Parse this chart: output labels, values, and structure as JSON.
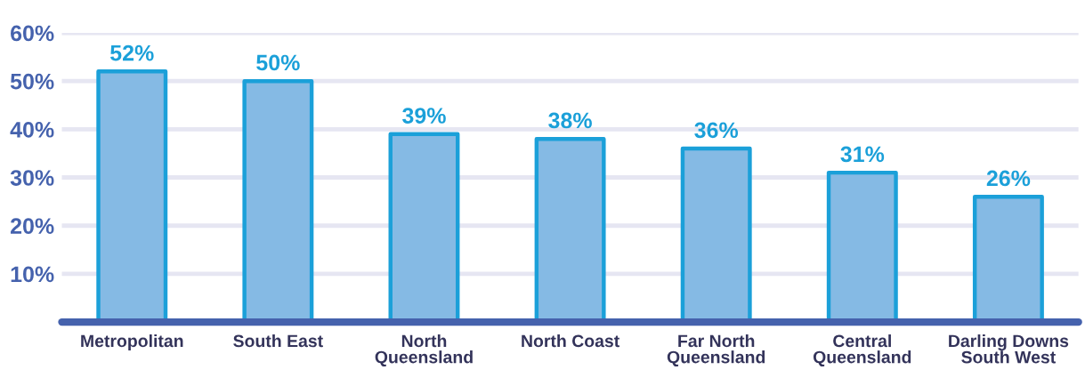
{
  "chart_data": {
    "type": "bar",
    "categories": [
      "Metropolitan",
      "South East",
      "North Queensland",
      "North Coast",
      "Far North Queensland",
      "Central Queensland",
      "Darling Downs South West"
    ],
    "values": [
      52,
      50,
      39,
      38,
      36,
      31,
      26
    ],
    "value_labels": [
      "52%",
      "50%",
      "39%",
      "38%",
      "36%",
      "31%",
      "26%"
    ],
    "color": "#85bae4",
    "ylim": [
      0,
      60
    ],
    "yticks": [
      {
        "value": 10,
        "label": "10%"
      },
      {
        "value": 20,
        "label": "20%"
      },
      {
        "value": 30,
        "label": "30%"
      },
      {
        "value": 40,
        "label": "40%"
      },
      {
        "value": 50,
        "label": "50%"
      },
      {
        "value": 60,
        "label": "60%"
      }
    ],
    "grid": "y"
  }
}
